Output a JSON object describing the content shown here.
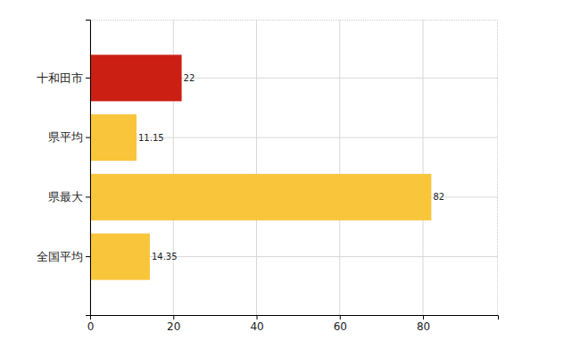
{
  "chart_data": {
    "type": "bar",
    "orientation": "horizontal",
    "categories": [
      "十和田市",
      "県平均",
      "県最大",
      "全国平均"
    ],
    "values": [
      22,
      11.15,
      82,
      14.35
    ],
    "colors": [
      "#cc1f14",
      "#f9c53b",
      "#f9c53b",
      "#f9c53b"
    ],
    "xlim": [
      0,
      98
    ],
    "xticks": [
      0,
      20,
      40,
      60,
      80
    ],
    "grid": true,
    "data_labels": true
  }
}
